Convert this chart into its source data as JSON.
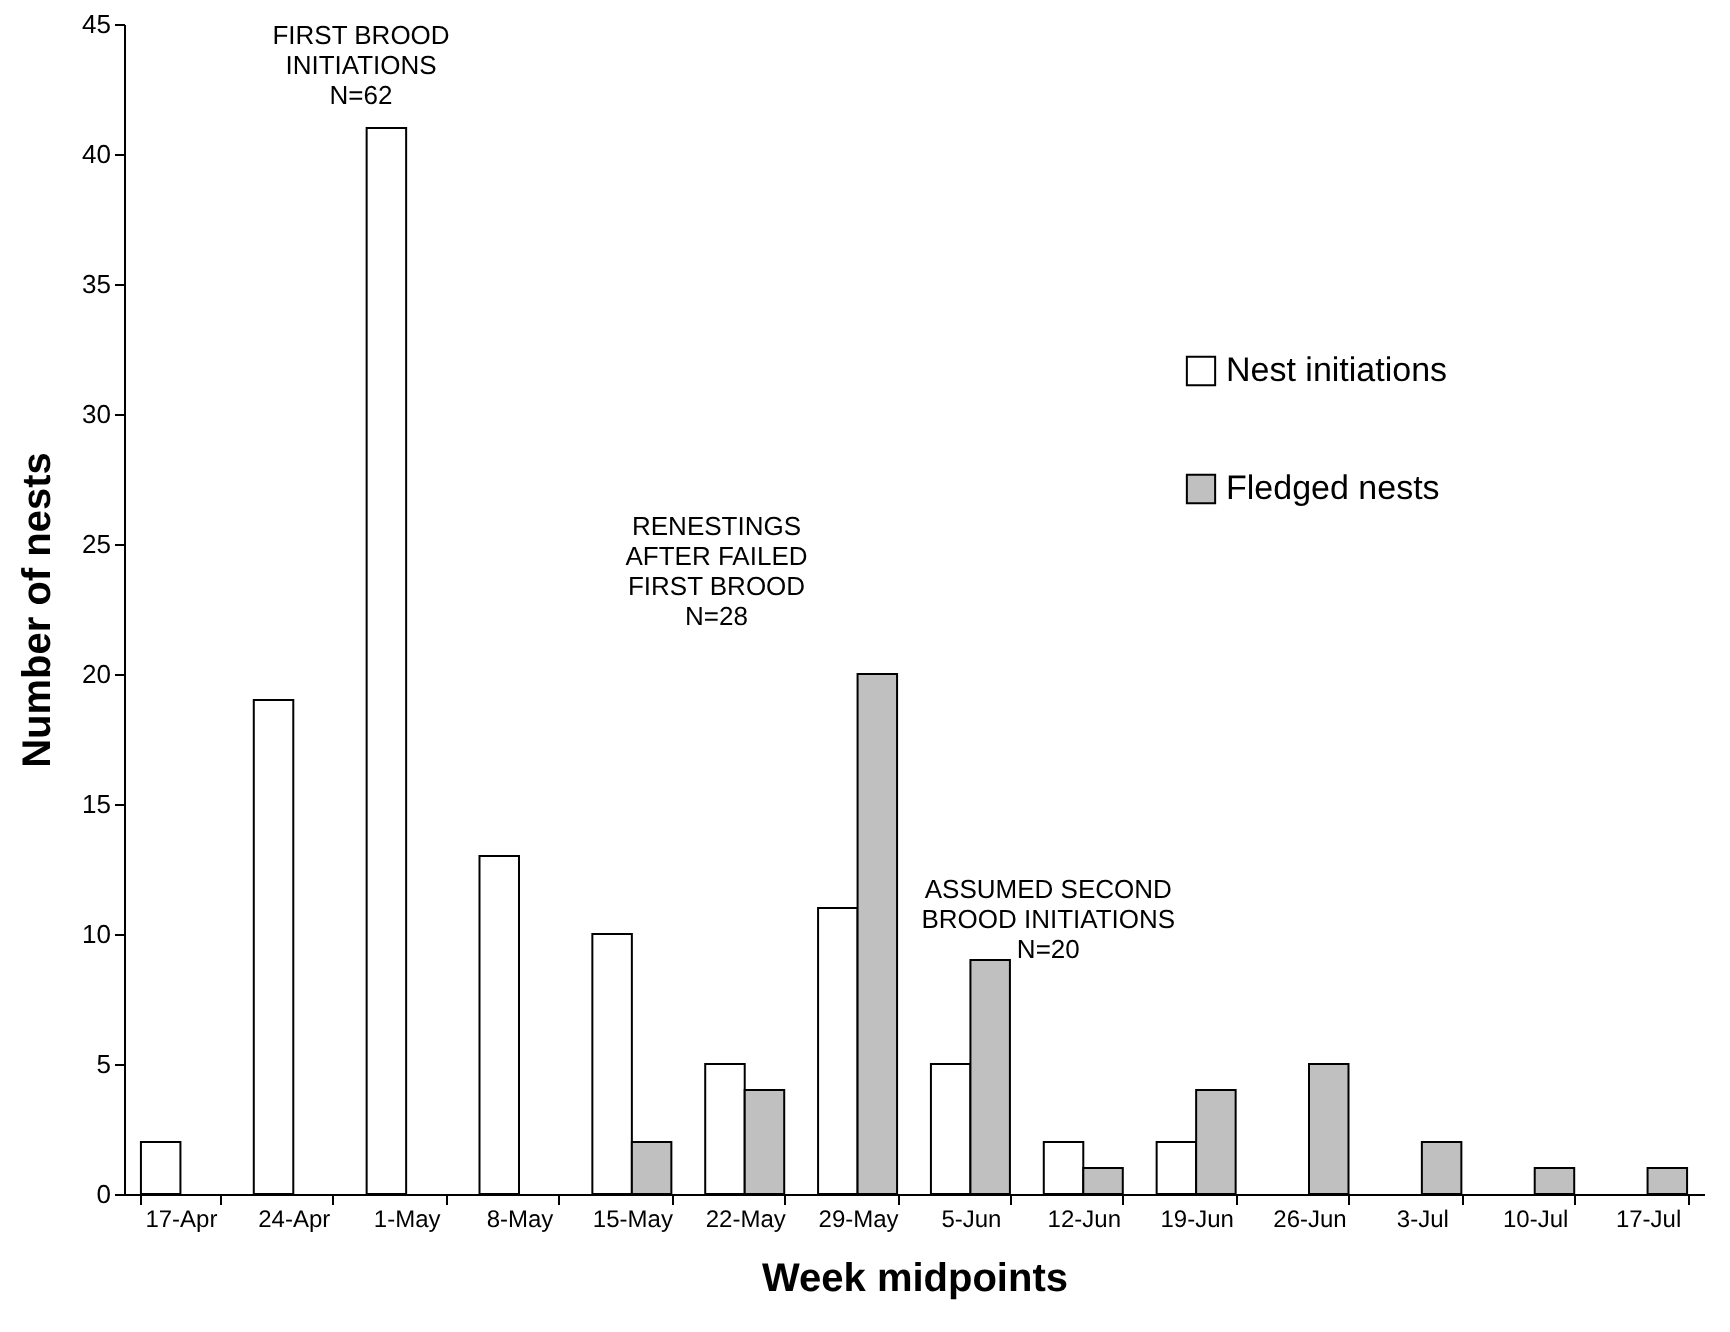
{
  "chart_data": {
    "type": "bar",
    "xlabel": "Week midpoints",
    "ylabel": "Number of nests",
    "categories": [
      "17-Apr",
      "24-Apr",
      "1-May",
      "8-May",
      "15-May",
      "22-May",
      "29-May",
      "5-Jun",
      "12-Jun",
      "19-Jun",
      "26-Jun",
      "3-Jul",
      "10-Jul",
      "17-Jul"
    ],
    "series": [
      {
        "name": "Nest initiations",
        "color": "#ffffff",
        "values": [
          2,
          19,
          41,
          13,
          10,
          5,
          11,
          5,
          2,
          2,
          null,
          null,
          null,
          null
        ]
      },
      {
        "name": "Fledged nests",
        "color": "#c0c0c0",
        "values": [
          null,
          null,
          null,
          null,
          2,
          4,
          20,
          9,
          1,
          4,
          5,
          2,
          1,
          1
        ]
      }
    ],
    "ylim": [
      0,
      45
    ],
    "yticks": [
      0,
      5,
      10,
      15,
      20,
      25,
      30,
      35,
      40,
      45
    ],
    "grid": false,
    "legend": "top right",
    "annotations": [
      "FIRST BROOD\nINITIATIONS\nN=62",
      "RENESTINGS\nAFTER FAILED\nFIRST BROOD\nN=28",
      "ASSUMED SECOND\nBROOD INITIATIONS\nN=20"
    ]
  }
}
